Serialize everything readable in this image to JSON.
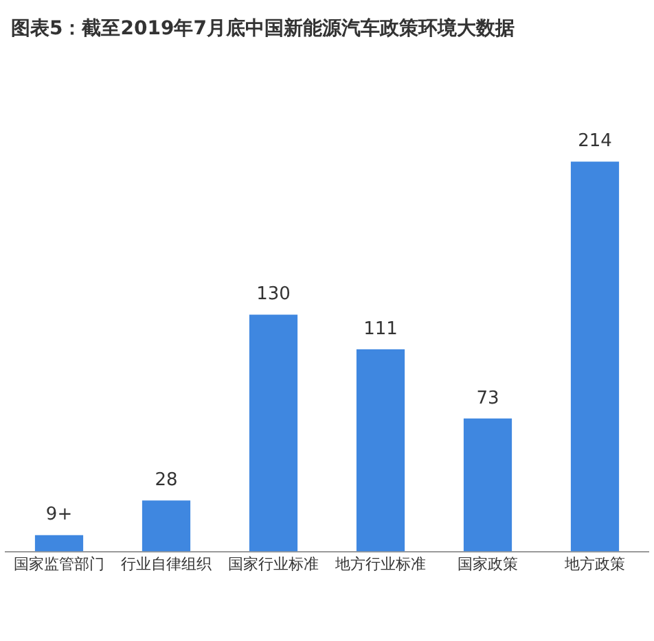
{
  "chart_data": {
    "type": "bar",
    "title": "图表5：截至2019年7月底中国新能源汽车政策环境大数据",
    "categories": [
      "国家监管部门",
      "行业自律组织",
      "国家行业标准",
      "地方行业标准",
      "国家政策",
      "地方政策"
    ],
    "values": [
      9,
      28,
      130,
      111,
      73,
      214
    ],
    "value_labels": [
      "9+",
      "28",
      "130",
      "111",
      "73",
      "214"
    ],
    "color": "#3f87e0",
    "grid": false,
    "legend": false
  }
}
